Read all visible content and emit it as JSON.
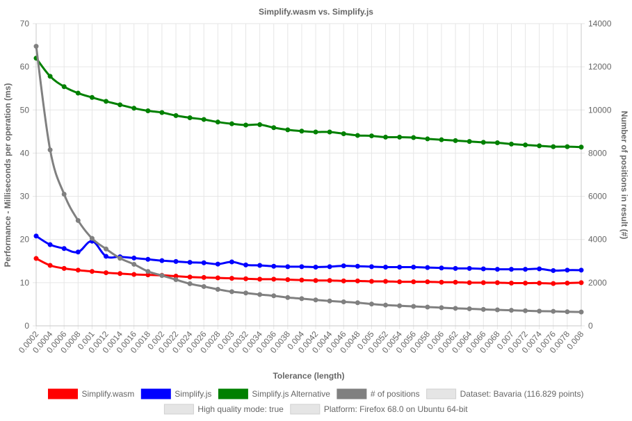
{
  "chart_data": {
    "type": "line",
    "title": "Simplify.wasm vs. Simplify.js",
    "xlabel": "Tolerance (length)",
    "ylabel": "Performance - Milliseconds per operation (ms)",
    "y2label": "Number of positions in result (#)",
    "ylim": [
      0,
      70
    ],
    "y_ticks": [
      0,
      10,
      20,
      30,
      40,
      50,
      60,
      70
    ],
    "y2lim": [
      0,
      14000
    ],
    "y2_ticks": [
      0,
      2000,
      4000,
      6000,
      8000,
      10000,
      12000,
      14000
    ],
    "grid": true,
    "legend_position": "bottom",
    "x": [
      "0.0002",
      "0.0004",
      "0.0006",
      "0.0008",
      "0.001",
      "0.0012",
      "0.0014",
      "0.0016",
      "0.0018",
      "0.002",
      "0.0022",
      "0.0024",
      "0.0026",
      "0.0028",
      "0.003",
      "0.0032",
      "0.0034",
      "0.0036",
      "0.0038",
      "0.004",
      "0.0042",
      "0.0044",
      "0.0046",
      "0.0048",
      "0.005",
      "0.0052",
      "0.0054",
      "0.0056",
      "0.0058",
      "0.006",
      "0.0062",
      "0.0064",
      "0.0066",
      "0.0068",
      "0.007",
      "0.0072",
      "0.0074",
      "0.0076",
      "0.0078",
      "0.008"
    ],
    "series": [
      {
        "name": "Simplify.wasm",
        "color": "#ff0000",
        "axis": "left",
        "values": [
          15.6,
          14.0,
          13.3,
          12.9,
          12.6,
          12.3,
          12.1,
          11.9,
          11.8,
          11.7,
          11.5,
          11.3,
          11.2,
          11.1,
          11.0,
          10.9,
          10.8,
          10.8,
          10.7,
          10.6,
          10.5,
          10.5,
          10.4,
          10.4,
          10.3,
          10.3,
          10.2,
          10.2,
          10.2,
          10.1,
          10.1,
          10.0,
          10.0,
          10.0,
          9.9,
          9.9,
          9.9,
          9.8,
          9.9,
          10.0
        ]
      },
      {
        "name": "Simplify.js",
        "color": "#0000ff",
        "axis": "left",
        "values": [
          20.8,
          18.8,
          17.9,
          17.1,
          19.6,
          16.1,
          16.0,
          15.7,
          15.4,
          15.1,
          14.9,
          14.7,
          14.6,
          14.3,
          14.8,
          14.1,
          14.0,
          13.8,
          13.7,
          13.7,
          13.6,
          13.7,
          13.9,
          13.8,
          13.7,
          13.6,
          13.6,
          13.6,
          13.5,
          13.4,
          13.3,
          13.3,
          13.2,
          13.1,
          13.1,
          13.1,
          13.2,
          12.8,
          12.9,
          12.9
        ]
      },
      {
        "name": "Simplify.js Alternative",
        "color": "#008000",
        "axis": "left",
        "values": [
          62.0,
          57.8,
          55.4,
          53.9,
          52.9,
          52.0,
          51.2,
          50.4,
          49.8,
          49.4,
          48.7,
          48.2,
          47.8,
          47.2,
          46.8,
          46.5,
          46.6,
          45.9,
          45.4,
          45.1,
          44.9,
          44.9,
          44.5,
          44.1,
          44.0,
          43.7,
          43.7,
          43.6,
          43.3,
          43.1,
          42.9,
          42.7,
          42.5,
          42.4,
          42.1,
          41.9,
          41.7,
          41.5,
          41.5,
          41.4
        ]
      },
      {
        "name": "# of positions",
        "color": "#808080",
        "axis": "right",
        "values": [
          12950,
          8150,
          6100,
          4880,
          4050,
          3560,
          3130,
          2850,
          2520,
          2330,
          2140,
          1950,
          1820,
          1690,
          1580,
          1520,
          1450,
          1390,
          1310,
          1260,
          1200,
          1150,
          1110,
          1070,
          1010,
          960,
          930,
          900,
          870,
          840,
          810,
          790,
          760,
          740,
          720,
          700,
          680,
          670,
          650,
          640
        ]
      }
    ],
    "legend": [
      {
        "label": "Simplify.wasm",
        "color": "#ff0000"
      },
      {
        "label": "Simplify.js",
        "color": "#0000ff"
      },
      {
        "label": "Simplify.js Alternative",
        "color": "#008000"
      },
      {
        "label": "# of positions",
        "color": "#808080"
      },
      {
        "label": "Dataset: Bavaria (116.829 points)",
        "color": "#e5e5e5"
      },
      {
        "label": "High quality mode: true",
        "color": "#e5e5e5"
      },
      {
        "label": "Platform: Firefox 68.0 on Ubuntu 64-bit",
        "color": "#e5e5e5"
      }
    ]
  }
}
